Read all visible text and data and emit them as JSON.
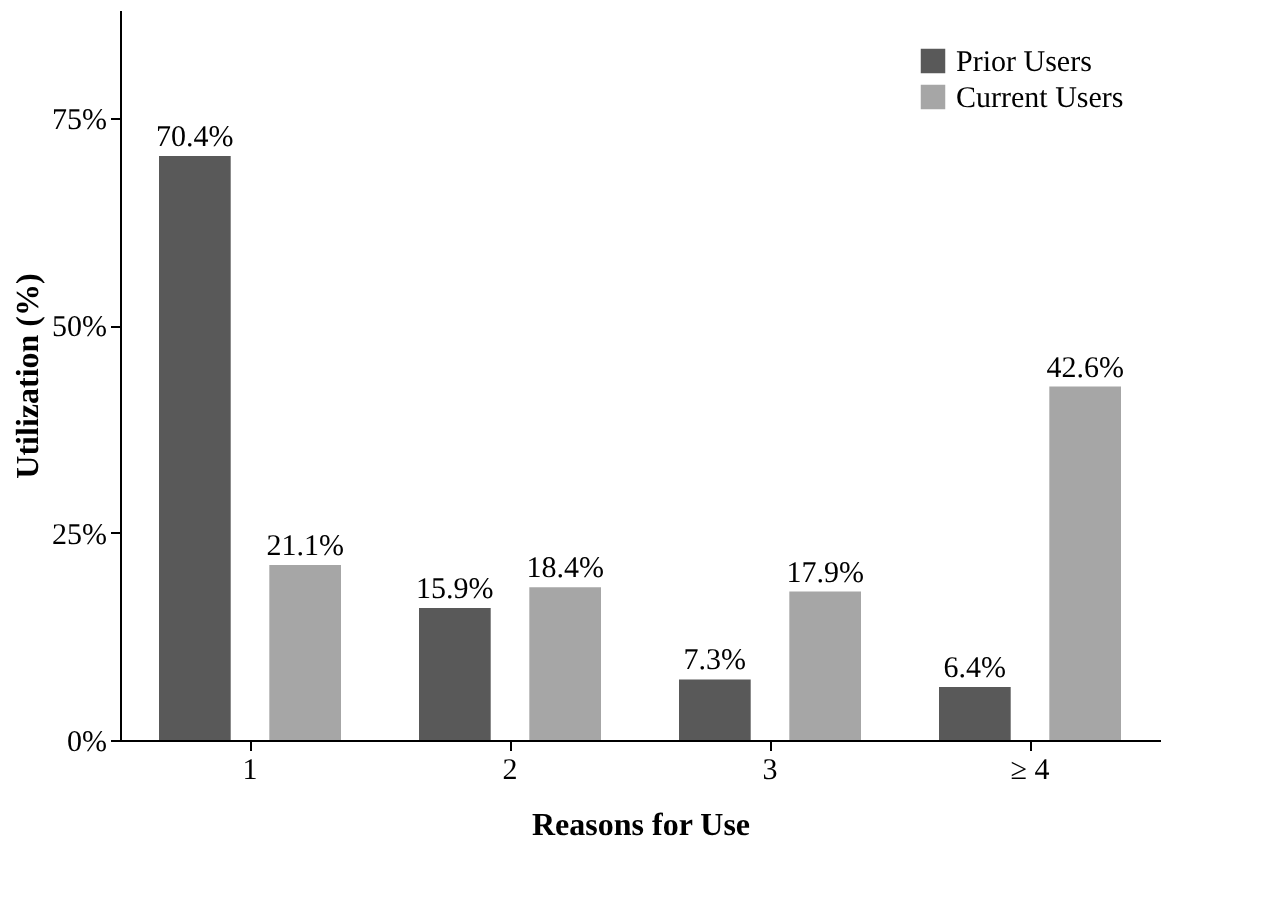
{
  "chart_data": {
    "type": "bar",
    "xlabel": "Reasons for Use",
    "ylabel": "Utilization  (%)",
    "categories": [
      "1",
      "2",
      "3",
      "≥ 4"
    ],
    "series": [
      {
        "name": "Prior Users",
        "color": "#595959",
        "values": [
          70.4,
          15.9,
          7.3,
          6.4
        ],
        "value_labels": [
          "70.4%",
          "15.9%",
          "7.3%",
          "6.4%"
        ]
      },
      {
        "name": "Current Users",
        "color": "#a6a6a6",
        "values": [
          21.1,
          18.4,
          17.9,
          42.6
        ],
        "value_labels": [
          "21.1%",
          "18.4%",
          "17.9%",
          "42.6%"
        ]
      }
    ],
    "ylim": [
      0,
      88
    ],
    "yticks": [
      {
        "value": 0,
        "label": "0%"
      },
      {
        "value": 25,
        "label": "25%"
      },
      {
        "value": 50,
        "label": "50%"
      },
      {
        "value": 75,
        "label": "75%"
      }
    ],
    "grid": false,
    "legend": "top right"
  }
}
